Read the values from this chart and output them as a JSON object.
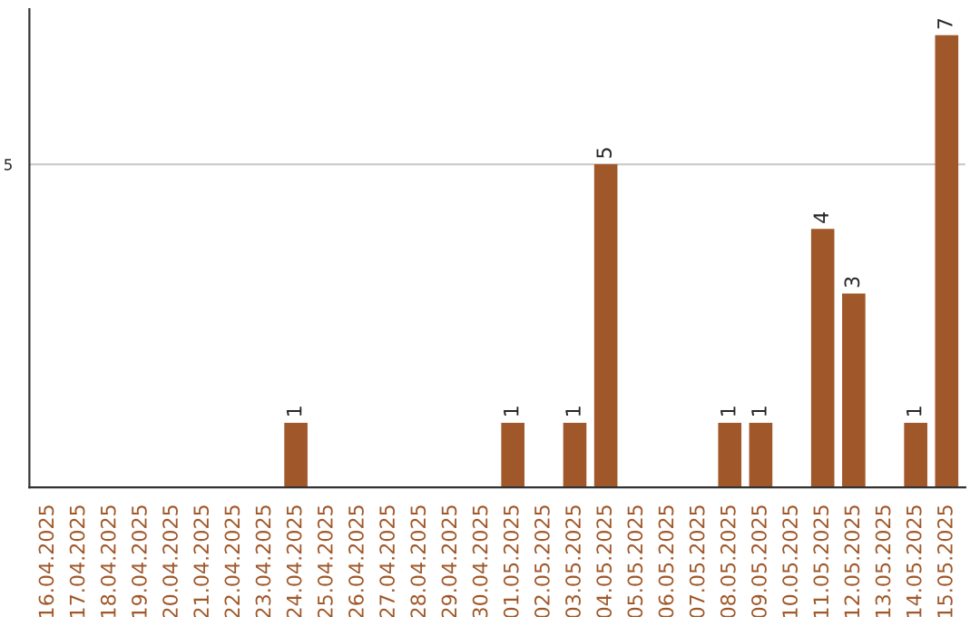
{
  "chart_data": {
    "type": "bar",
    "categories": [
      "16.04.2025",
      "17.04.2025",
      "18.04.2025",
      "19.04.2025",
      "20.04.2025",
      "21.04.2025",
      "22.04.2025",
      "23.04.2025",
      "24.04.2025",
      "25.04.2025",
      "26.04.2025",
      "27.04.2025",
      "28.04.2025",
      "29.04.2025",
      "30.04.2025",
      "01.05.2025",
      "02.05.2025",
      "03.05.2025",
      "04.05.2025",
      "05.05.2025",
      "06.05.2025",
      "07.05.2025",
      "08.05.2025",
      "09.05.2025",
      "10.05.2025",
      "11.05.2025",
      "12.05.2025",
      "13.05.2025",
      "14.05.2025",
      "15.05.2025"
    ],
    "values": [
      null,
      null,
      null,
      null,
      null,
      null,
      null,
      null,
      1,
      null,
      null,
      null,
      null,
      null,
      null,
      1,
      null,
      1,
      5,
      null,
      null,
      null,
      1,
      1,
      null,
      4,
      3,
      null,
      1,
      7
    ],
    "value_labels": [
      null,
      null,
      null,
      null,
      null,
      null,
      null,
      null,
      "1",
      null,
      null,
      null,
      null,
      null,
      null,
      "1",
      null,
      "1",
      "5",
      null,
      null,
      null,
      "1",
      "1",
      null,
      "4",
      "3",
      null,
      "1",
      "7"
    ],
    "color": "#a0582a",
    "ylim": [
      0,
      7.4
    ],
    "yticks": [
      5
    ],
    "grid": "y"
  }
}
